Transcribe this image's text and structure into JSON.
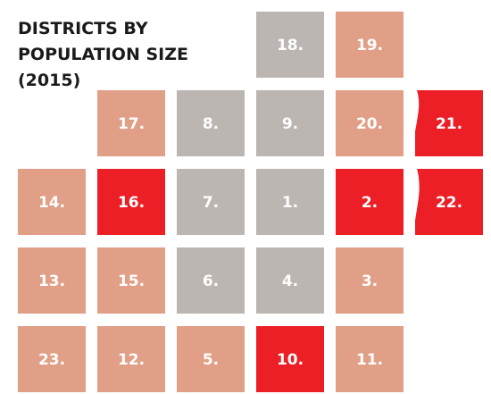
{
  "title": [
    "DISTRICTS BY",
    "POPULATION SIZE",
    "(2015)"
  ],
  "colors": {
    "salmon": "#e09f86",
    "gray": "#bcb6b2",
    "red": "#ec1f26"
  },
  "rows": [
    [
      null,
      null,
      null,
      {
        "label": "18.",
        "color": "gray"
      },
      {
        "label": "19.",
        "color": "salmon"
      },
      null
    ],
    [
      null,
      {
        "label": "17.",
        "color": "salmon"
      },
      {
        "label": "8.",
        "color": "gray"
      },
      {
        "label": "9.",
        "color": "gray"
      },
      {
        "label": "20.",
        "color": "salmon"
      },
      {
        "label": "21.",
        "color": "red"
      }
    ],
    [
      {
        "label": "14.",
        "color": "salmon"
      },
      {
        "label": "16.",
        "color": "red"
      },
      {
        "label": "7.",
        "color": "gray"
      },
      {
        "label": "1.",
        "color": "gray"
      },
      {
        "label": "2.",
        "color": "red"
      },
      {
        "label": "22.",
        "color": "red"
      }
    ],
    [
      {
        "label": "13.",
        "color": "salmon"
      },
      {
        "label": "15.",
        "color": "salmon"
      },
      {
        "label": "6.",
        "color": "gray"
      },
      {
        "label": "4.",
        "color": "gray"
      },
      {
        "label": "3.",
        "color": "salmon"
      },
      null
    ],
    [
      {
        "label": "23.",
        "color": "salmon"
      },
      {
        "label": "12.",
        "color": "salmon"
      },
      {
        "label": "5.",
        "color": "salmon"
      },
      {
        "label": "10.",
        "color": "red"
      },
      {
        "label": "11.",
        "color": "salmon"
      },
      null
    ]
  ]
}
